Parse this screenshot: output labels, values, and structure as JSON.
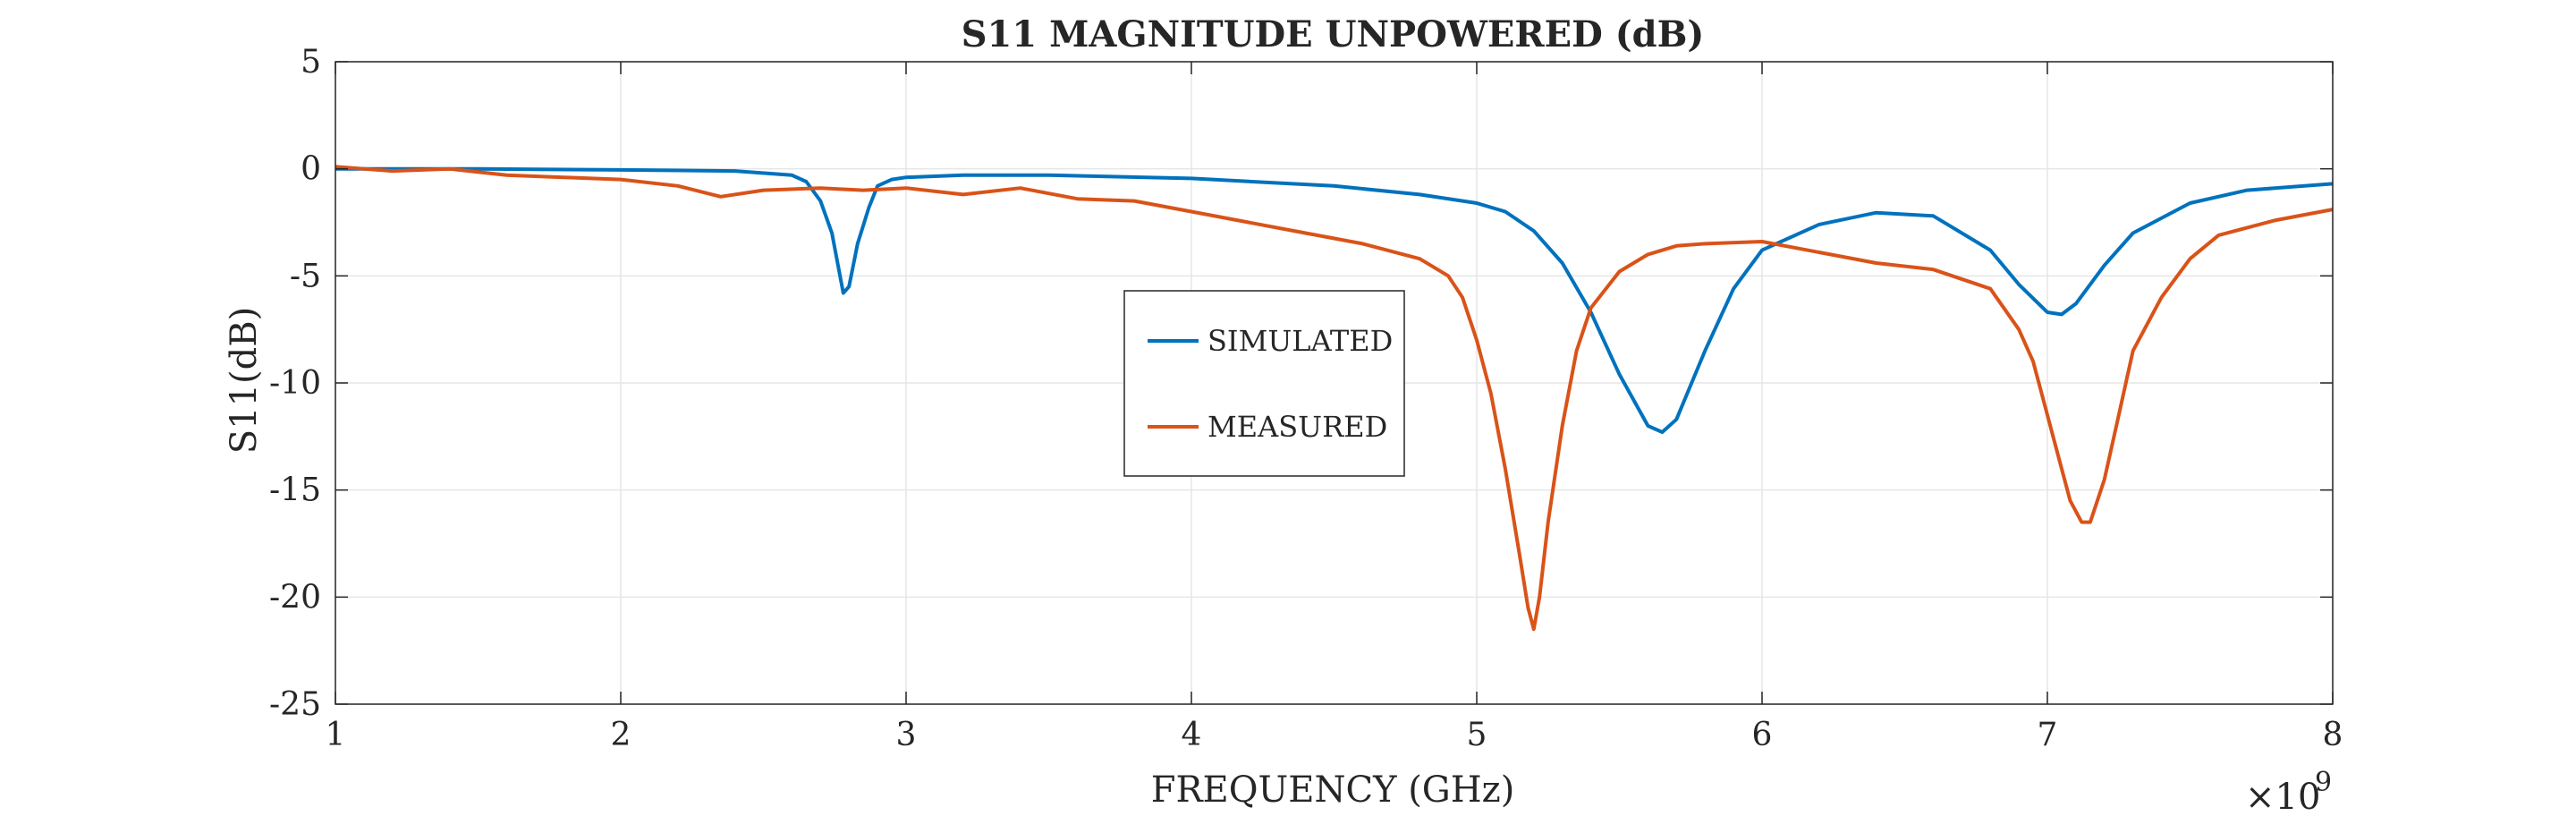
{
  "chart_data": {
    "type": "line",
    "title": "S11 MAGNITUDE UNPOWERED (dB)",
    "xlabel": "FREQUENCY (GHz)",
    "ylabel": "S11(dB)",
    "x_multiplier_label": "×10",
    "x_multiplier_exponent": "9",
    "xlim": [
      1,
      8
    ],
    "ylim": [
      -25,
      5
    ],
    "x_ticks": [
      1,
      2,
      3,
      4,
      5,
      6,
      7,
      8
    ],
    "x_tick_labels": [
      "1",
      "2",
      "3",
      "4",
      "5",
      "6",
      "7",
      "8"
    ],
    "y_ticks": [
      5,
      0,
      -5,
      -10,
      -15,
      -20,
      -25
    ],
    "y_tick_labels": [
      "5",
      "0",
      "-5",
      "-10",
      "-15",
      "-20",
      "-25"
    ],
    "grid": true,
    "legend_position": "center",
    "series": [
      {
        "name": "SIMULATED",
        "color": "#0072bd",
        "x": [
          1.0,
          1.5,
          2.0,
          2.4,
          2.6,
          2.65,
          2.7,
          2.74,
          2.78,
          2.8,
          2.83,
          2.87,
          2.9,
          2.95,
          3.0,
          3.2,
          3.5,
          4.0,
          4.5,
          4.8,
          5.0,
          5.1,
          5.2,
          5.3,
          5.4,
          5.5,
          5.6,
          5.65,
          5.7,
          5.8,
          5.9,
          6.0,
          6.2,
          6.4,
          6.6,
          6.8,
          6.9,
          7.0,
          7.05,
          7.1,
          7.2,
          7.3,
          7.5,
          7.7,
          8.0
        ],
        "y": [
          0.0,
          0.0,
          -0.05,
          -0.1,
          -0.3,
          -0.6,
          -1.5,
          -3.0,
          -5.8,
          -5.5,
          -3.5,
          -1.8,
          -0.8,
          -0.5,
          -0.4,
          -0.3,
          -0.3,
          -0.45,
          -0.8,
          -1.2,
          -1.6,
          -2.0,
          -2.9,
          -4.4,
          -6.7,
          -9.6,
          -12.0,
          -12.3,
          -11.7,
          -8.5,
          -5.6,
          -3.8,
          -2.6,
          -2.05,
          -2.2,
          -3.8,
          -5.4,
          -6.7,
          -6.8,
          -6.3,
          -4.5,
          -3.0,
          -1.6,
          -1.0,
          -0.7
        ]
      },
      {
        "name": "MEASURED",
        "color": "#d95319",
        "x": [
          1.0,
          1.2,
          1.4,
          1.6,
          1.8,
          2.0,
          2.2,
          2.35,
          2.5,
          2.7,
          2.85,
          3.0,
          3.2,
          3.4,
          3.6,
          3.8,
          4.0,
          4.2,
          4.4,
          4.6,
          4.8,
          4.9,
          4.95,
          5.0,
          5.05,
          5.1,
          5.15,
          5.18,
          5.2,
          5.22,
          5.25,
          5.3,
          5.35,
          5.4,
          5.5,
          5.6,
          5.7,
          5.8,
          6.0,
          6.2,
          6.4,
          6.6,
          6.8,
          6.9,
          6.95,
          7.0,
          7.05,
          7.08,
          7.12,
          7.15,
          7.2,
          7.25,
          7.3,
          7.4,
          7.5,
          7.6,
          7.8,
          8.0
        ],
        "y": [
          0.1,
          -0.1,
          0.0,
          -0.3,
          -0.4,
          -0.5,
          -0.8,
          -1.3,
          -1.0,
          -0.9,
          -1.0,
          -0.9,
          -1.2,
          -0.9,
          -1.4,
          -1.5,
          -2.0,
          -2.5,
          -3.0,
          -3.5,
          -4.2,
          -5.0,
          -6.0,
          -8.0,
          -10.5,
          -14.0,
          -18.0,
          -20.5,
          -21.5,
          -20.0,
          -16.5,
          -12.0,
          -8.5,
          -6.5,
          -4.8,
          -4.0,
          -3.6,
          -3.5,
          -3.4,
          -3.9,
          -4.4,
          -4.7,
          -5.6,
          -7.5,
          -9.0,
          -11.5,
          -14.0,
          -15.5,
          -16.5,
          -16.5,
          -14.5,
          -11.5,
          -8.5,
          -6.0,
          -4.2,
          -3.1,
          -2.4,
          -1.9
        ]
      }
    ]
  }
}
